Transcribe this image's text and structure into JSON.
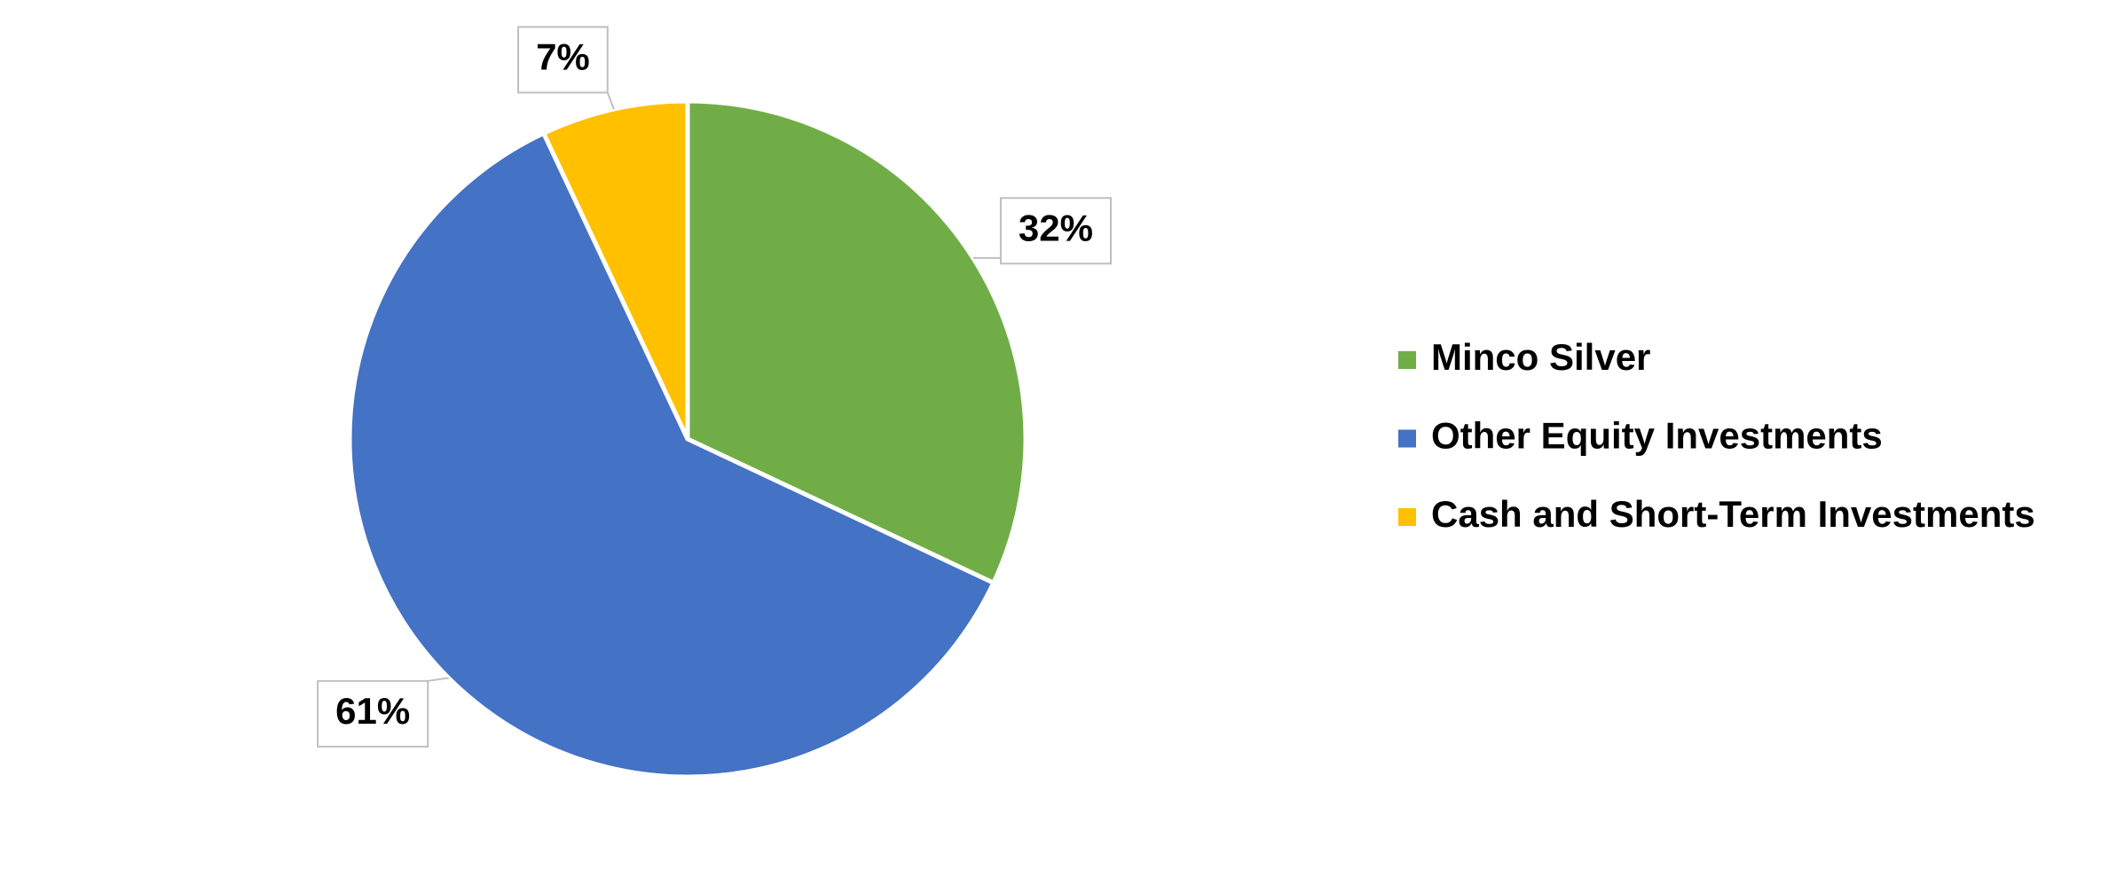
{
  "chart_data": {
    "type": "pie",
    "categories": [
      "Minco Silver",
      "Other Equity Investments",
      "Cash and Short-Term Investments"
    ],
    "values": [
      32,
      61,
      7
    ],
    "value_labels": [
      "32%",
      "61%",
      "7%"
    ],
    "colors": [
      "#70ad47",
      "#4472c4",
      "#ffc000"
    ],
    "legend": "right"
  }
}
